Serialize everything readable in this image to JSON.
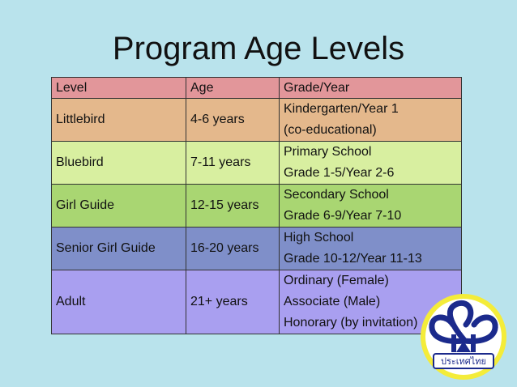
{
  "slide": {
    "title": "Program Age Levels"
  },
  "table": {
    "headers": [
      "Level",
      "Age",
      "Grade/Year"
    ],
    "rows": [
      {
        "level": "Littlebird",
        "age": "4-6 years",
        "grade": [
          "Kindergarten/Year 1",
          "(co-educational)"
        ]
      },
      {
        "level": "Bluebird",
        "age": "7-11 years",
        "grade": [
          "Primary School",
          "Grade 1-5/Year 2-6"
        ]
      },
      {
        "level": "Girl Guide",
        "age": "12-15 years",
        "grade": [
          "Secondary School",
          "Grade 6-9/Year 7-10"
        ]
      },
      {
        "level": "Senior Girl Guide",
        "age": "16-20 years",
        "grade": [
          "High School",
          "Grade 10-12/Year 11-13"
        ]
      },
      {
        "level": "Adult",
        "age": "21+ years",
        "grade": [
          "Ordinary (Female)",
          "Associate (Male)",
          "Honorary (by invitation)"
        ]
      }
    ]
  },
  "colors": {
    "background": "#b9e3ec",
    "header_row": "#e2969a",
    "littlebird": "#e4b88c",
    "bluebird": "#d8efa0",
    "girl_guide": "#a9d672",
    "senior_girl_guide": "#7f8fc9",
    "adult": "#a99ff0"
  },
  "logo": {
    "icon": "trefoil-emblem-icon",
    "text": "ประเทศไทย"
  }
}
